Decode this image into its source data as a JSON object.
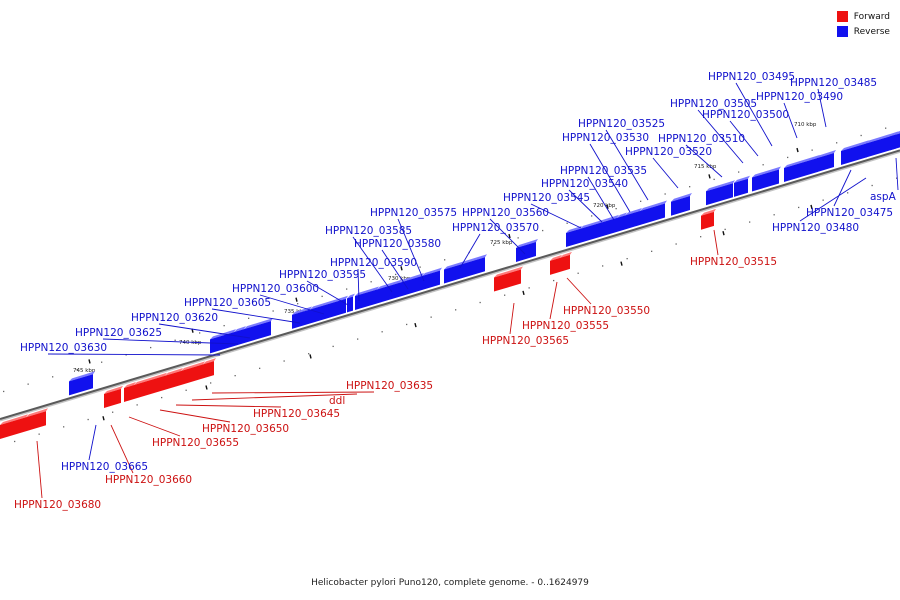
{
  "legend": {
    "forward_label": "Forward",
    "reverse_label": "Reverse",
    "forward_color": "#ee1111",
    "reverse_color": "#1111ee"
  },
  "footer": {
    "caption": "Helicobacter pylori Puno120, complete genome. - 0..1624979"
  },
  "axis": {
    "ticks": [
      {
        "label": "710 kbp"
      },
      {
        "label": "715 kbp"
      },
      {
        "label": "720 kbp"
      },
      {
        "label": "725 kbp"
      },
      {
        "label": "730 kbp"
      },
      {
        "label": "735 kbp"
      },
      {
        "label": "740 kbp"
      },
      {
        "label": "745 kbp"
      }
    ]
  },
  "genes": [
    {
      "name": "HPPN120_03485",
      "strand": "reverse"
    },
    {
      "name": "HPPN120_03490",
      "strand": "reverse"
    },
    {
      "name": "HPPN120_03495",
      "strand": "reverse"
    },
    {
      "name": "HPPN120_03500",
      "strand": "reverse"
    },
    {
      "name": "HPPN120_03505",
      "strand": "reverse"
    },
    {
      "name": "HPPN120_03510",
      "strand": "reverse"
    },
    {
      "name": "HPPN120_03520",
      "strand": "reverse"
    },
    {
      "name": "HPPN120_03525",
      "strand": "reverse"
    },
    {
      "name": "HPPN120_03530",
      "strand": "reverse"
    },
    {
      "name": "HPPN120_03535",
      "strand": "reverse"
    },
    {
      "name": "HPPN120_03540",
      "strand": "reverse"
    },
    {
      "name": "HPPN120_03545",
      "strand": "reverse"
    },
    {
      "name": "HPPN120_03560",
      "strand": "reverse"
    },
    {
      "name": "HPPN120_03570",
      "strand": "reverse"
    },
    {
      "name": "HPPN120_03575",
      "strand": "reverse"
    },
    {
      "name": "HPPN120_03580",
      "strand": "reverse"
    },
    {
      "name": "HPPN120_03585",
      "strand": "reverse"
    },
    {
      "name": "HPPN120_03590",
      "strand": "reverse"
    },
    {
      "name": "HPPN120_03595",
      "strand": "reverse"
    },
    {
      "name": "HPPN120_03600",
      "strand": "reverse"
    },
    {
      "name": "HPPN120_03605",
      "strand": "reverse"
    },
    {
      "name": "HPPN120_03620",
      "strand": "reverse"
    },
    {
      "name": "HPPN120_03625",
      "strand": "reverse"
    },
    {
      "name": "HPPN120_03630",
      "strand": "reverse"
    },
    {
      "name": "HPPN120_03665",
      "strand": "reverse"
    },
    {
      "name": "HPPN120_03475",
      "strand": "reverse"
    },
    {
      "name": "HPPN120_03480",
      "strand": "reverse"
    },
    {
      "name": "aspA",
      "strand": "reverse"
    },
    {
      "name": "HPPN120_03515",
      "strand": "forward"
    },
    {
      "name": "HPPN120_03550",
      "strand": "forward"
    },
    {
      "name": "HPPN120_03555",
      "strand": "forward"
    },
    {
      "name": "HPPN120_03565",
      "strand": "forward"
    },
    {
      "name": "HPPN120_03635",
      "strand": "forward"
    },
    {
      "name": "ddl",
      "strand": "forward"
    },
    {
      "name": "HPPN120_03645",
      "strand": "forward"
    },
    {
      "name": "HPPN120_03650",
      "strand": "forward"
    },
    {
      "name": "HPPN120_03655",
      "strand": "forward"
    },
    {
      "name": "HPPN120_03660",
      "strand": "forward"
    },
    {
      "name": "HPPN120_03680",
      "strand": "forward"
    }
  ]
}
